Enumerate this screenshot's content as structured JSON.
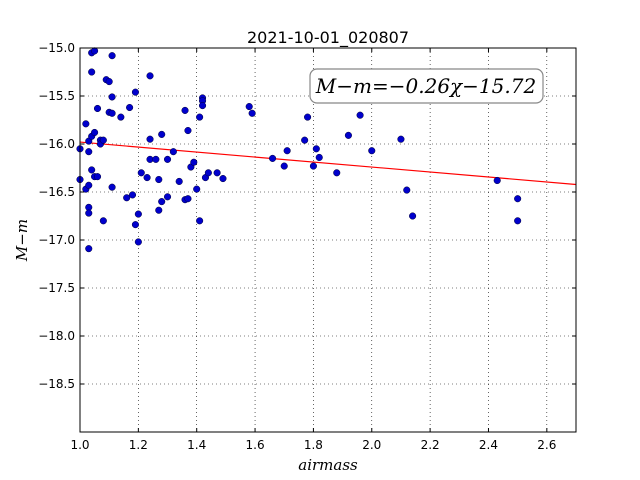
{
  "chart_data": {
    "type": "scatter",
    "title": "2021-10-01_020807",
    "xlabel": "airmass",
    "ylabel": "M−m",
    "xlim": [
      1.0,
      2.7
    ],
    "ylim": [
      -15.0,
      -19.0
    ],
    "y_inverted": true,
    "xticks": [
      "1.0",
      "1.2",
      "1.4",
      "1.6",
      "1.8",
      "2.0",
      "2.2",
      "2.4",
      "2.6"
    ],
    "yticks": [
      "−15.0",
      "−15.5",
      "−16.0",
      "−16.5",
      "−17.0",
      "−17.5",
      "−18.0",
      "−18.5"
    ],
    "grid": true,
    "annotation": "M−m=−0.26χ−15.72",
    "fit": {
      "slope": -0.26,
      "intercept": -15.72,
      "color": "#ff0000"
    },
    "points_color": "#0000cc",
    "points": [
      [
        1.0,
        -16.05
      ],
      [
        1.0,
        -16.37
      ],
      [
        1.02,
        -15.79
      ],
      [
        1.02,
        -16.47
      ],
      [
        1.03,
        -15.97
      ],
      [
        1.03,
        -16.08
      ],
      [
        1.03,
        -16.43
      ],
      [
        1.03,
        -16.66
      ],
      [
        1.03,
        -16.72
      ],
      [
        1.03,
        -17.09
      ],
      [
        1.04,
        -15.05
      ],
      [
        1.04,
        -15.25
      ],
      [
        1.04,
        -15.92
      ],
      [
        1.04,
        -16.27
      ],
      [
        1.05,
        -15.03
      ],
      [
        1.05,
        -15.88
      ],
      [
        1.05,
        -16.34
      ],
      [
        1.06,
        -15.63
      ],
      [
        1.06,
        -16.34
      ],
      [
        1.07,
        -15.96
      ],
      [
        1.07,
        -16.0
      ],
      [
        1.08,
        -15.96
      ],
      [
        1.08,
        -16.8
      ],
      [
        1.09,
        -15.33
      ],
      [
        1.1,
        -15.35
      ],
      [
        1.1,
        -15.67
      ],
      [
        1.11,
        -15.08
      ],
      [
        1.11,
        -15.51
      ],
      [
        1.11,
        -15.68
      ],
      [
        1.11,
        -16.45
      ],
      [
        1.14,
        -15.72
      ],
      [
        1.16,
        -16.56
      ],
      [
        1.17,
        -15.62
      ],
      [
        1.18,
        -16.53
      ],
      [
        1.19,
        -15.46
      ],
      [
        1.19,
        -16.84
      ],
      [
        1.2,
        -16.73
      ],
      [
        1.2,
        -17.02
      ],
      [
        1.21,
        -16.3
      ],
      [
        1.23,
        -16.35
      ],
      [
        1.24,
        -15.29
      ],
      [
        1.24,
        -15.95
      ],
      [
        1.24,
        -16.16
      ],
      [
        1.26,
        -16.16
      ],
      [
        1.27,
        -16.37
      ],
      [
        1.27,
        -16.69
      ],
      [
        1.28,
        -15.9
      ],
      [
        1.28,
        -16.6
      ],
      [
        1.3,
        -16.16
      ],
      [
        1.3,
        -16.55
      ],
      [
        1.32,
        -16.08
      ],
      [
        1.34,
        -16.39
      ],
      [
        1.36,
        -15.65
      ],
      [
        1.36,
        -16.58
      ],
      [
        1.37,
        -15.86
      ],
      [
        1.37,
        -16.57
      ],
      [
        1.38,
        -16.24
      ],
      [
        1.39,
        -16.19
      ],
      [
        1.4,
        -16.47
      ],
      [
        1.41,
        -16.8
      ],
      [
        1.41,
        -15.72
      ],
      [
        1.42,
        -15.52
      ],
      [
        1.42,
        -15.55
      ],
      [
        1.42,
        -15.6
      ],
      [
        1.43,
        -16.35
      ],
      [
        1.44,
        -16.3
      ],
      [
        1.47,
        -16.3
      ],
      [
        1.49,
        -16.36
      ],
      [
        1.58,
        -15.61
      ],
      [
        1.59,
        -15.68
      ],
      [
        1.66,
        -16.15
      ],
      [
        1.7,
        -16.23
      ],
      [
        1.71,
        -16.07
      ],
      [
        1.77,
        -15.96
      ],
      [
        1.78,
        -15.72
      ],
      [
        1.8,
        -16.23
      ],
      [
        1.81,
        -16.05
      ],
      [
        1.82,
        -16.14
      ],
      [
        1.88,
        -16.3
      ],
      [
        1.92,
        -15.91
      ],
      [
        1.96,
        -15.7
      ],
      [
        2.0,
        -16.07
      ],
      [
        2.1,
        -15.95
      ],
      [
        2.12,
        -16.48
      ],
      [
        2.14,
        -16.75
      ],
      [
        2.43,
        -16.38
      ],
      [
        2.5,
        -16.57
      ],
      [
        2.5,
        -16.8
      ]
    ]
  }
}
